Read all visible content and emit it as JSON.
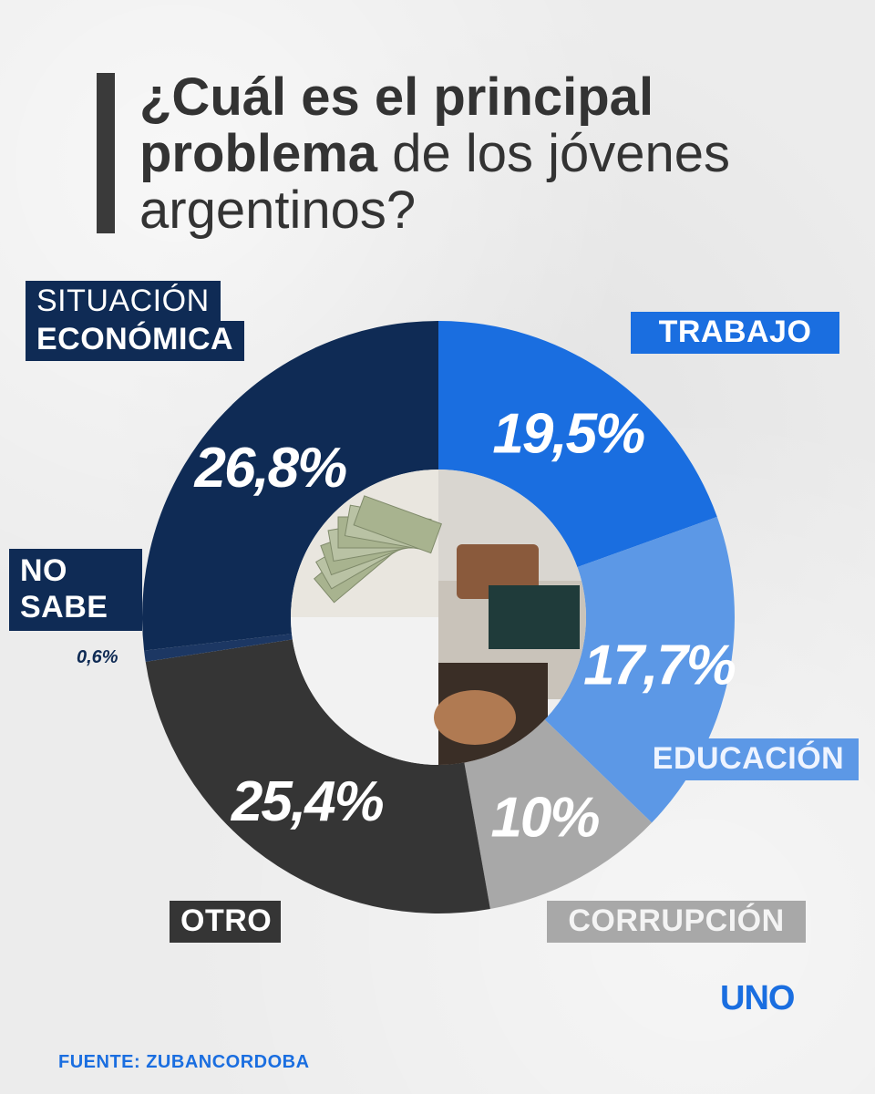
{
  "title": {
    "bold_part": "¿Cuál es el principal problema",
    "light_part": "de los jóvenes argentinos?"
  },
  "labels": {
    "situacion_line1": "SITUACIÓN",
    "situacion_line2": "ECONÓMICA",
    "trabajo": "TRABAJO",
    "educacion": "EDUCACIÓN",
    "corrupcion": "CORRUPCIÓN",
    "otro": "OTRO",
    "no_sabe_line1": "NO",
    "no_sabe_line2": "SABE",
    "no_sabe_pct": "0,6%"
  },
  "source": "FUENTE: ZUBANCORDOBA",
  "logo": "UNO",
  "colors": {
    "situacion": "#0f2b55",
    "trabajo": "#1a6ee0",
    "educacion": "#5c98e6",
    "corrupcion": "#a8a8a8",
    "otro": "#353535",
    "no_sabe": "#1c3763"
  },
  "chart_data": {
    "type": "pie",
    "title": "¿Cuál es el principal problema de los jóvenes argentinos?",
    "categories": [
      "TRABAJO",
      "EDUCACIÓN",
      "CORRUPCIÓN",
      "OTRO",
      "NO SABE",
      "SITUACIÓN ECONÓMICA"
    ],
    "values": [
      19.5,
      17.7,
      10,
      25.4,
      0.6,
      26.8
    ],
    "value_labels": [
      "19,5%",
      "17,7%",
      "10%",
      "25,4%",
      "0,6%",
      "26,8%"
    ],
    "donut": true,
    "start": "top",
    "direction": "clockwise"
  }
}
